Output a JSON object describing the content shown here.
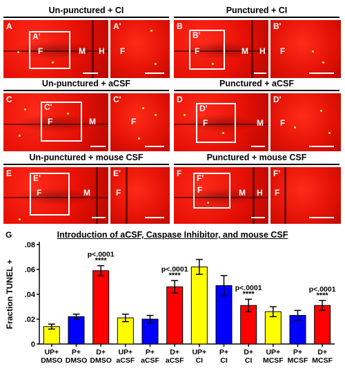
{
  "headers": {
    "r1_left": "Un-punctured + CI",
    "r1_right": "Punctured + CI",
    "r2_left": "Un-punctured + aCSF",
    "r2_right": "Punctured + aCSF",
    "r3_left": "Un-punctured + mouse CSF",
    "r3_right": "Punctured + mouse CSF"
  },
  "panels": {
    "A": {
      "label": "A",
      "box": "A'",
      "regions": [
        "F",
        "M",
        "H"
      ]
    },
    "Ap": {
      "label": "A'",
      "regions": [
        "F"
      ]
    },
    "B": {
      "label": "B",
      "box": "B'",
      "regions": [
        "F",
        "M",
        "H"
      ]
    },
    "Bp": {
      "label": "B'",
      "regions": [
        "F"
      ]
    },
    "C": {
      "label": "C",
      "box": "C'",
      "regions": [
        "F",
        "M"
      ]
    },
    "Cp": {
      "label": "C'",
      "regions": [
        "F"
      ]
    },
    "D": {
      "label": "D",
      "box": "D'",
      "regions": [
        "F",
        "M"
      ]
    },
    "Dp": {
      "label": "D'",
      "regions": [
        "F"
      ]
    },
    "E": {
      "label": "E",
      "box": "E'",
      "regions": [
        "F",
        "M"
      ]
    },
    "Ep": {
      "label": "E'",
      "regions": [
        "F"
      ]
    },
    "F": {
      "label": "F",
      "box": "F'",
      "regions": [
        "F",
        "M",
        "H"
      ]
    },
    "Fp": {
      "label": "F'",
      "regions": [
        "F"
      ]
    }
  },
  "panel_g_label": "G",
  "chart_data": {
    "type": "bar",
    "title": "Introduction of aCSF, Caspase Inhibitor, and mouse CSF",
    "ylabel": "Fraction TUNEL +",
    "ylim": [
      0,
      0.08
    ],
    "yticks": [
      "0",
      ".02",
      ".04",
      ".06",
      ".08"
    ],
    "categories": [
      "UP+ DMSO",
      "P+ DMSO",
      "D+ DMSO",
      "UP+ aCSF",
      "P+ aCSF",
      "D+ aCSF",
      "UP+ CI",
      "P+ CI",
      "D+ CI",
      "UP+ MCSF",
      "P+ MCSF",
      "D+ MCSF"
    ],
    "category_lines": [
      [
        "UP+",
        "DMSO"
      ],
      [
        "P+",
        "DMSO"
      ],
      [
        "D+",
        "DMSO"
      ],
      [
        "UP+",
        "aCSF"
      ],
      [
        "P+",
        "aCSF"
      ],
      [
        "D+",
        "aCSF"
      ],
      [
        "UP+",
        "CI"
      ],
      [
        "P+",
        "CI"
      ],
      [
        "D+",
        "CI"
      ],
      [
        "UP+",
        "MCSF"
      ],
      [
        "P+",
        "MCSF"
      ],
      [
        "D+",
        "MCSF"
      ]
    ],
    "values": [
      0.014,
      0.022,
      0.059,
      0.021,
      0.02,
      0.046,
      0.062,
      0.047,
      0.031,
      0.026,
      0.023,
      0.031
    ],
    "errors": [
      0.002,
      0.002,
      0.004,
      0.003,
      0.003,
      0.005,
      0.006,
      0.008,
      0.005,
      0.004,
      0.004,
      0.004
    ],
    "colors": [
      "#ffff00",
      "#0000ff",
      "#ff0000",
      "#ffff00",
      "#0000ff",
      "#ff0000",
      "#ffff00",
      "#0000ff",
      "#ff0000",
      "#ffff00",
      "#0000ff",
      "#ff0000"
    ],
    "annotations": [
      {
        "index": 2,
        "p": "p<.0001",
        "stars": "****"
      },
      {
        "index": 5,
        "p": "p<.0001",
        "stars": "****"
      },
      {
        "index": 8,
        "p": "p<.0001",
        "stars": "****"
      },
      {
        "index": 11,
        "p": "p<.0001",
        "stars": "****"
      }
    ],
    "grid": false,
    "legend": "none"
  }
}
